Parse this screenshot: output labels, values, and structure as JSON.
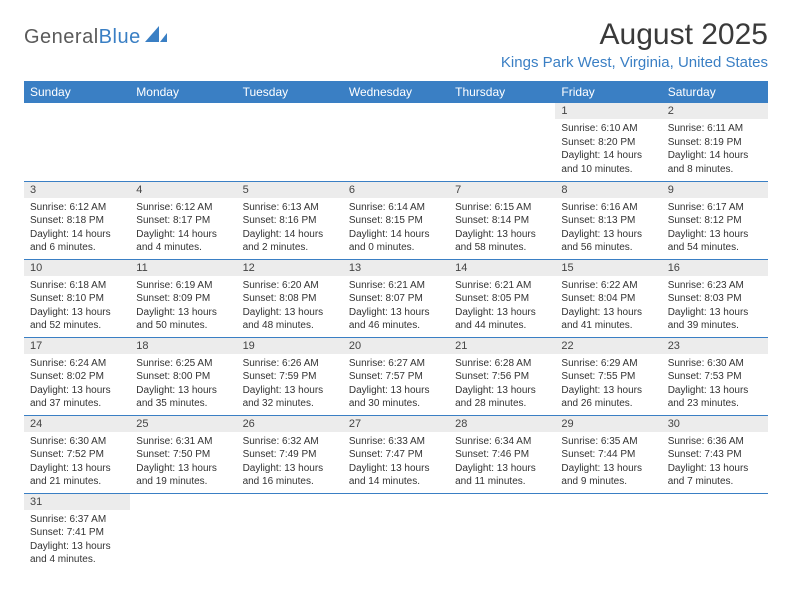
{
  "logo": {
    "part1": "General",
    "part2": "Blue"
  },
  "header": {
    "month": "August 2025",
    "location": "Kings Park West, Virginia, United States"
  },
  "colors": {
    "accent": "#3a7fc4",
    "daynum_bg": "#ececec",
    "text": "#333333",
    "row_border": "#3a7fc4"
  },
  "weekdays": [
    "Sunday",
    "Monday",
    "Tuesday",
    "Wednesday",
    "Thursday",
    "Friday",
    "Saturday"
  ],
  "days": {
    "1": {
      "sunrise": "6:10 AM",
      "sunset": "8:20 PM",
      "daylight": "14 hours and 10 minutes."
    },
    "2": {
      "sunrise": "6:11 AM",
      "sunset": "8:19 PM",
      "daylight": "14 hours and 8 minutes."
    },
    "3": {
      "sunrise": "6:12 AM",
      "sunset": "8:18 PM",
      "daylight": "14 hours and 6 minutes."
    },
    "4": {
      "sunrise": "6:12 AM",
      "sunset": "8:17 PM",
      "daylight": "14 hours and 4 minutes."
    },
    "5": {
      "sunrise": "6:13 AM",
      "sunset": "8:16 PM",
      "daylight": "14 hours and 2 minutes."
    },
    "6": {
      "sunrise": "6:14 AM",
      "sunset": "8:15 PM",
      "daylight": "14 hours and 0 minutes."
    },
    "7": {
      "sunrise": "6:15 AM",
      "sunset": "8:14 PM",
      "daylight": "13 hours and 58 minutes."
    },
    "8": {
      "sunrise": "6:16 AM",
      "sunset": "8:13 PM",
      "daylight": "13 hours and 56 minutes."
    },
    "9": {
      "sunrise": "6:17 AM",
      "sunset": "8:12 PM",
      "daylight": "13 hours and 54 minutes."
    },
    "10": {
      "sunrise": "6:18 AM",
      "sunset": "8:10 PM",
      "daylight": "13 hours and 52 minutes."
    },
    "11": {
      "sunrise": "6:19 AM",
      "sunset": "8:09 PM",
      "daylight": "13 hours and 50 minutes."
    },
    "12": {
      "sunrise": "6:20 AM",
      "sunset": "8:08 PM",
      "daylight": "13 hours and 48 minutes."
    },
    "13": {
      "sunrise": "6:21 AM",
      "sunset": "8:07 PM",
      "daylight": "13 hours and 46 minutes."
    },
    "14": {
      "sunrise": "6:21 AM",
      "sunset": "8:05 PM",
      "daylight": "13 hours and 44 minutes."
    },
    "15": {
      "sunrise": "6:22 AM",
      "sunset": "8:04 PM",
      "daylight": "13 hours and 41 minutes."
    },
    "16": {
      "sunrise": "6:23 AM",
      "sunset": "8:03 PM",
      "daylight": "13 hours and 39 minutes."
    },
    "17": {
      "sunrise": "6:24 AM",
      "sunset": "8:02 PM",
      "daylight": "13 hours and 37 minutes."
    },
    "18": {
      "sunrise": "6:25 AM",
      "sunset": "8:00 PM",
      "daylight": "13 hours and 35 minutes."
    },
    "19": {
      "sunrise": "6:26 AM",
      "sunset": "7:59 PM",
      "daylight": "13 hours and 32 minutes."
    },
    "20": {
      "sunrise": "6:27 AM",
      "sunset": "7:57 PM",
      "daylight": "13 hours and 30 minutes."
    },
    "21": {
      "sunrise": "6:28 AM",
      "sunset": "7:56 PM",
      "daylight": "13 hours and 28 minutes."
    },
    "22": {
      "sunrise": "6:29 AM",
      "sunset": "7:55 PM",
      "daylight": "13 hours and 26 minutes."
    },
    "23": {
      "sunrise": "6:30 AM",
      "sunset": "7:53 PM",
      "daylight": "13 hours and 23 minutes."
    },
    "24": {
      "sunrise": "6:30 AM",
      "sunset": "7:52 PM",
      "daylight": "13 hours and 21 minutes."
    },
    "25": {
      "sunrise": "6:31 AM",
      "sunset": "7:50 PM",
      "daylight": "13 hours and 19 minutes."
    },
    "26": {
      "sunrise": "6:32 AM",
      "sunset": "7:49 PM",
      "daylight": "13 hours and 16 minutes."
    },
    "27": {
      "sunrise": "6:33 AM",
      "sunset": "7:47 PM",
      "daylight": "13 hours and 14 minutes."
    },
    "28": {
      "sunrise": "6:34 AM",
      "sunset": "7:46 PM",
      "daylight": "13 hours and 11 minutes."
    },
    "29": {
      "sunrise": "6:35 AM",
      "sunset": "7:44 PM",
      "daylight": "13 hours and 9 minutes."
    },
    "30": {
      "sunrise": "6:36 AM",
      "sunset": "7:43 PM",
      "daylight": "13 hours and 7 minutes."
    },
    "31": {
      "sunrise": "6:37 AM",
      "sunset": "7:41 PM",
      "daylight": "13 hours and 4 minutes."
    }
  },
  "labels": {
    "sunrise": "Sunrise: ",
    "sunset": "Sunset: ",
    "daylight": "Daylight: "
  },
  "layout": {
    "first_weekday_index": 5,
    "days_in_month": 31,
    "columns": 7
  }
}
